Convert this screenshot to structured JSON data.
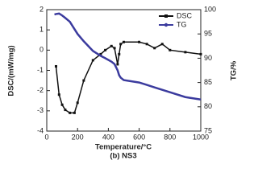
{
  "chart_data": {
    "type": "line",
    "caption": "(b) NS3",
    "xlabel": "Temperature/°C",
    "ylabel": "DSC/(mW/mg)",
    "y2label": "TG/%",
    "x": [
      50,
      60,
      80,
      100,
      120,
      150,
      180,
      200,
      240,
      300,
      350,
      380,
      420,
      440,
      460,
      470,
      480,
      500,
      600,
      650,
      700,
      750,
      800,
      900,
      1000
    ],
    "xlim": [
      0,
      1000
    ],
    "xticks": [
      0,
      200,
      400,
      600,
      800,
      1000
    ],
    "ylim": [
      -4,
      2
    ],
    "yticks": [
      -4,
      -3,
      -2,
      -1,
      0,
      1,
      2
    ],
    "y2lim": [
      75,
      100
    ],
    "y2ticks": [
      75,
      80,
      85,
      90,
      95,
      100
    ],
    "legend": "upper right",
    "series": [
      {
        "name": "DSC",
        "color": "#111111",
        "values": [
          null,
          -0.8,
          -2.2,
          -2.7,
          -2.95,
          -3.1,
          -3.1,
          -2.6,
          -1.5,
          -0.5,
          -0.2,
          0,
          0.2,
          0.1,
          -0.7,
          -0.2,
          0.3,
          0.4,
          0.4,
          0.3,
          0.1,
          0.3,
          0,
          -0.1,
          -0.2
        ]
      },
      {
        "name": "TG",
        "color": "#3b3b9e",
        "axis": "y2",
        "values": [
          99,
          99.1,
          99.2,
          98.8,
          98.3,
          97.5,
          96,
          95,
          93.5,
          91.5,
          90.5,
          90,
          89.3,
          88.8,
          87.5,
          86.5,
          86,
          85.5,
          85,
          84.5,
          84,
          83.5,
          83,
          82,
          81.5
        ]
      }
    ]
  }
}
